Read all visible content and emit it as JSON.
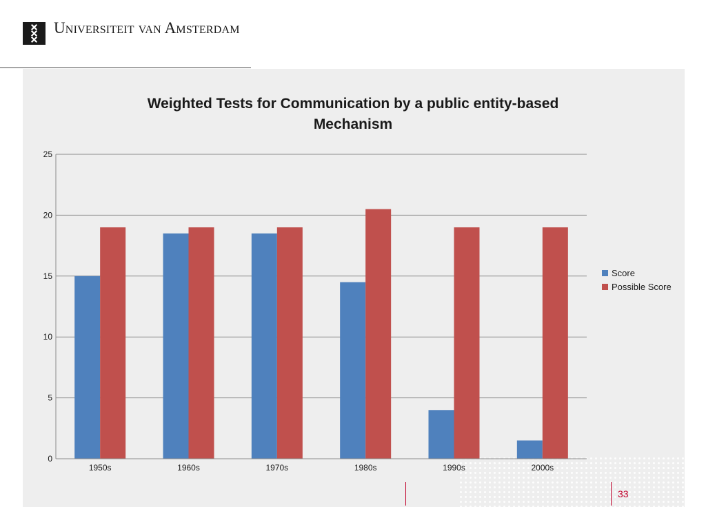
{
  "header": {
    "university_name": "Universiteit van Amsterdam",
    "logo_icon": "uva-crosses-logo-icon"
  },
  "slide": {
    "page_number": "33"
  },
  "colors": {
    "score": "#4f81bd",
    "possible_score": "#c0504d",
    "accent": "#c0002a"
  },
  "chart_data": {
    "type": "bar",
    "title": "Weighted Tests for Communication by a public entity-based Mechanism",
    "categories": [
      "1950s",
      "1960s",
      "1970s",
      "1980s",
      "1990s",
      "2000s"
    ],
    "series": [
      {
        "name": "Score",
        "values": [
          15,
          18.5,
          18.5,
          14.5,
          4,
          1.5
        ]
      },
      {
        "name": "Possible Score",
        "values": [
          19,
          19,
          19,
          20.5,
          19,
          19
        ]
      }
    ],
    "ylim": [
      0,
      25
    ],
    "yticks": [
      0,
      5,
      10,
      15,
      20,
      25
    ],
    "grid": true,
    "legend": "right"
  }
}
